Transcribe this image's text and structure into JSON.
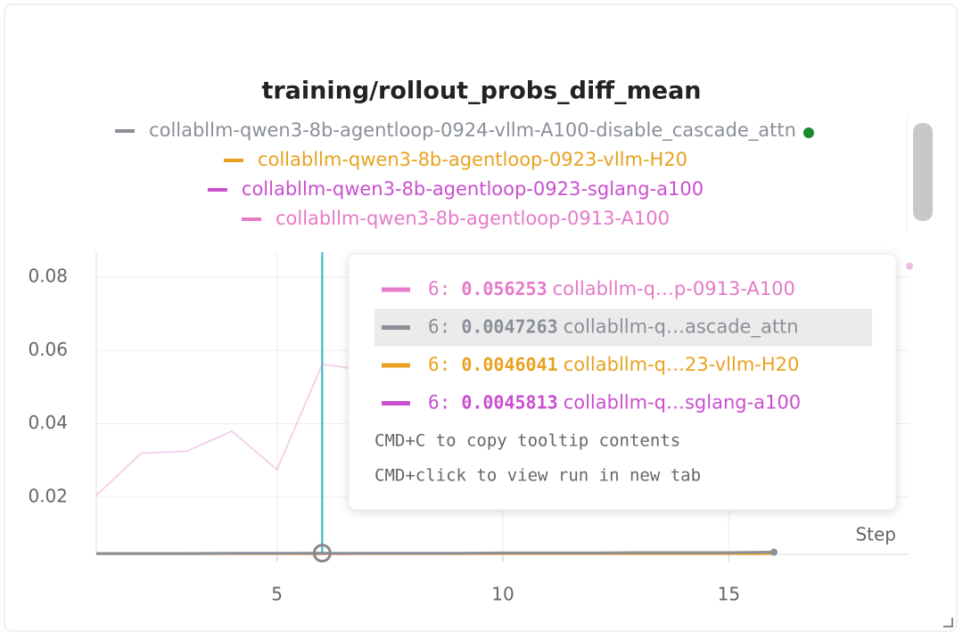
{
  "chart_data": {
    "type": "line",
    "title": "training/rollout_probs_diff_mean",
    "x_label": "Step",
    "x": [
      1,
      2,
      3,
      4,
      5,
      6,
      7,
      8,
      9,
      10,
      11,
      12,
      13,
      14,
      15,
      16,
      17,
      18,
      19
    ],
    "series": [
      {
        "name": "collabllm-qwen3-8b-agentloop-0924-vllm-A100-disable_cascade_attn",
        "color": "#8a8f98",
        "values": [
          0.0046,
          0.0046,
          0.0046,
          0.0047,
          0.0047,
          0.0047263,
          0.0047,
          0.0047,
          0.0047,
          0.0048,
          0.0048,
          0.0048,
          0.0049,
          0.0049,
          0.0049,
          0.005,
          null,
          null,
          null
        ]
      },
      {
        "name": "collabllm-qwen3-8b-agentloop-0923-vllm-H20",
        "color": "#e8a21f",
        "values": [
          0.0046,
          0.0046,
          0.0046,
          0.0046,
          0.0046,
          0.0046041,
          0.0046,
          0.0046,
          0.0046,
          0.0046,
          0.0046,
          0.0046,
          0.0046,
          0.0046,
          0.0046,
          0.0046,
          null,
          null,
          null
        ]
      },
      {
        "name": "collabllm-qwen3-8b-agentloop-0923-sglang-a100",
        "color": "#c94fd0",
        "values": [
          0.0046,
          0.0046,
          0.0046,
          0.0046,
          0.0046,
          0.0045813,
          0.0046,
          0.0046,
          0.0046,
          0.0046,
          0.0046,
          0.0046,
          0.0046,
          0.0046,
          0.0046,
          0.0046,
          null,
          null,
          null
        ]
      },
      {
        "name": "collabllm-qwen3-8b-agentloop-0913-A100",
        "color": "#e57ac8",
        "values": [
          0.0205,
          0.032,
          0.0325,
          0.038,
          0.0275,
          0.056253,
          0.0545,
          null,
          null,
          null,
          null,
          null,
          null,
          null,
          null,
          null,
          null,
          null,
          0.083
        ]
      }
    ],
    "xlim": [
      1,
      19
    ],
    "ylim": [
      0.0044,
      0.0868
    ],
    "xticks": [
      5,
      10,
      15
    ],
    "yticks": [
      0.02,
      0.04,
      0.06,
      0.08
    ],
    "grid": true,
    "tooltip": {
      "index": 5,
      "separator": ":",
      "rows": [
        {
          "series": 3,
          "label": "collabllm-q…p-0913-A100"
        },
        {
          "series": 0,
          "label": "collabllm-q…ascade_attn"
        },
        {
          "series": 1,
          "label": "collabllm-q…23-vllm-H20"
        },
        {
          "series": 2,
          "label": "collabllm-q…sglang-a100"
        }
      ],
      "hints": [
        "CMD+C to copy tooltip contents",
        "CMD+click to view run in new tab"
      ]
    }
  }
}
